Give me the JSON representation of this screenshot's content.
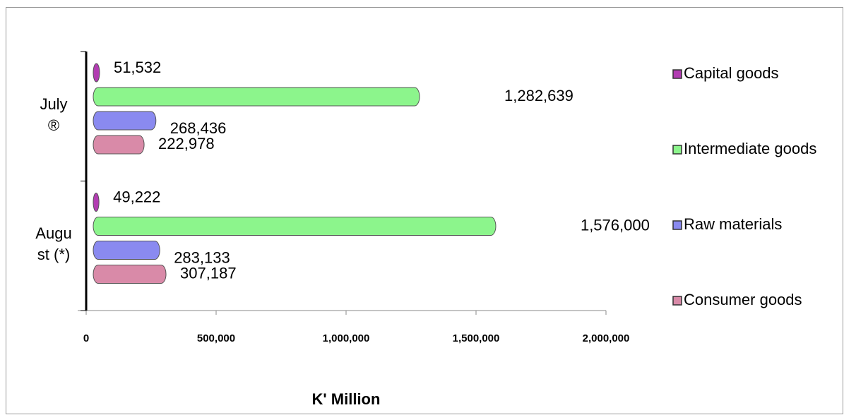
{
  "chart_data": {
    "type": "bar",
    "orientation": "horizontal",
    "categories": [
      "July ®",
      "August (*)"
    ],
    "series": [
      {
        "name": "Capital goods",
        "color": "#b23cb2",
        "values": [
          51532,
          49222
        ],
        "value_labels": [
          "51,532",
          "49,222"
        ]
      },
      {
        "name": "Intermediate goods",
        "color": "#8cf58c",
        "values": [
          1282639,
          1576000
        ],
        "value_labels": [
          "1,282,639",
          "1,576,000"
        ]
      },
      {
        "name": "Raw materials",
        "color": "#8a8af0",
        "values": [
          268436,
          283133
        ],
        "value_labels": [
          "268,436",
          "283,133"
        ]
      },
      {
        "name": "Consumer goods",
        "color": "#d98aa8",
        "values": [
          222978,
          307187
        ],
        "value_labels": [
          "222,978",
          "307,187"
        ]
      }
    ],
    "xlabel": "K' Million",
    "xlim": [
      0,
      2000000
    ],
    "xticks": [
      0,
      {
        "value": 500000,
        "label": "500,000"
      },
      {
        "value": 1000000,
        "label": "1,000,000"
      },
      {
        "value": 1500000,
        "label": "1,500,000"
      },
      {
        "value": 2000000,
        "label": "2,000,000"
      }
    ],
    "legend": "right"
  }
}
